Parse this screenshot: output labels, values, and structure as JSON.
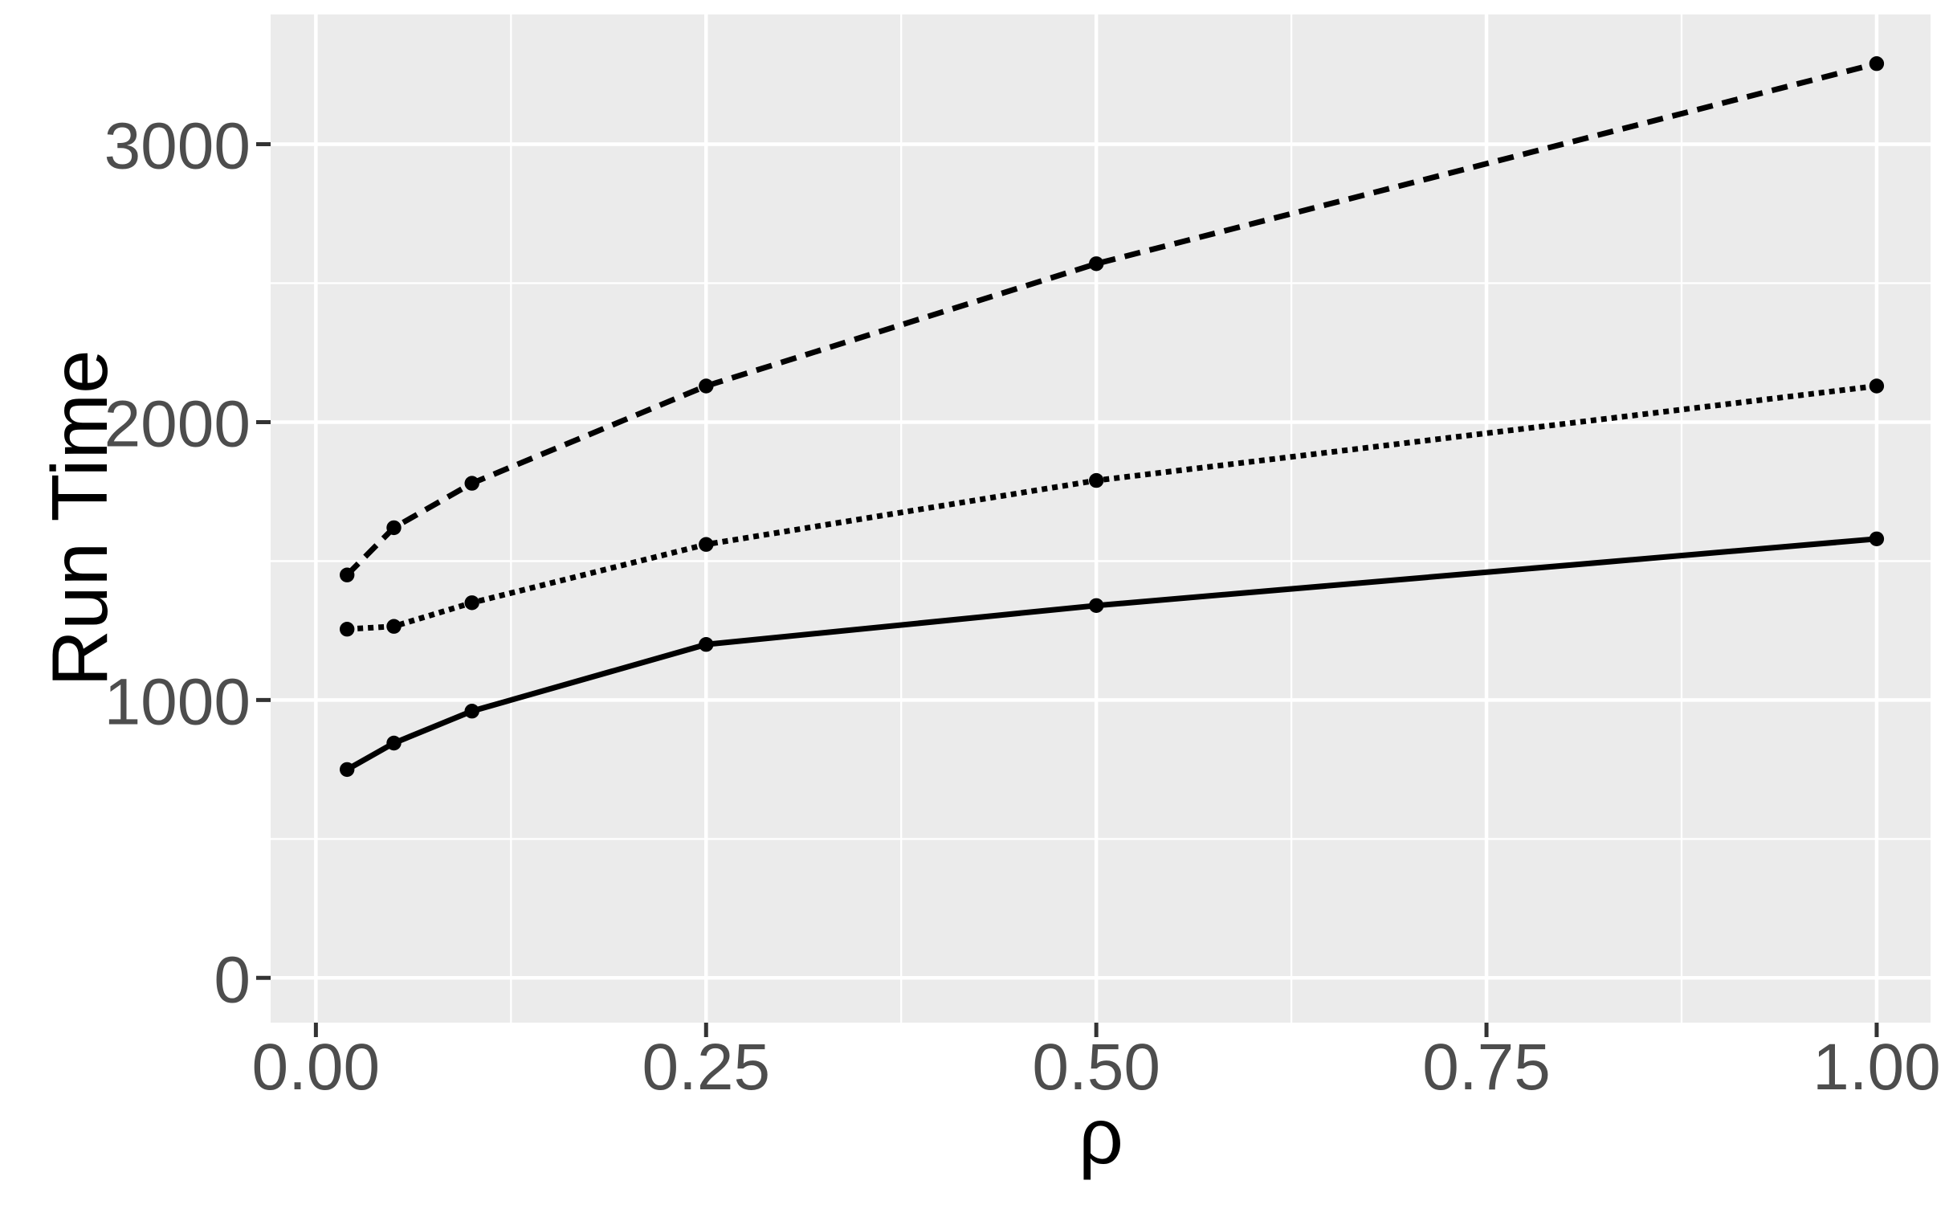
{
  "figure": {
    "kind": "ggplot-style statistical graphic",
    "background_color": "#FFFFFF"
  },
  "chart_data": {
    "type": "line",
    "title": "",
    "xlabel": "ρ",
    "ylabel": "Run Time",
    "x": [
      0.02,
      0.05,
      0.1,
      0.25,
      0.5,
      1.0
    ],
    "series": [
      {
        "name": "solid-line-series",
        "linetype": "solid",
        "values": [
          750,
          845,
          960,
          1200,
          1340,
          1580
        ]
      },
      {
        "name": "dotted-line-series",
        "linetype": "dotted",
        "values": [
          1255,
          1265,
          1350,
          1560,
          1790,
          2130
        ]
      },
      {
        "name": "dashed-line-series",
        "linetype": "dashed",
        "values": [
          1450,
          1620,
          1780,
          2130,
          2570,
          3290
        ]
      }
    ],
    "marker": "filled-circle",
    "legend": "none",
    "grid": "major-and-minor",
    "xlim": [
      -0.029,
      1.0345
    ],
    "ylim": [
      -161,
      3467
    ],
    "x_ticks": {
      "values": [
        0,
        0.25,
        0.5,
        0.75,
        1
      ],
      "labels": [
        "0.00",
        "0.25",
        "0.50",
        "0.75",
        "1.00"
      ]
    },
    "y_ticks": {
      "values": [
        0,
        1000,
        2000,
        3000
      ],
      "labels": [
        "0",
        "1000",
        "2000",
        "3000"
      ]
    },
    "x_minor_breaks": [
      0.125,
      0.375,
      0.625,
      0.875
    ],
    "y_minor_breaks": [
      500,
      1500,
      2500
    ],
    "colors": {
      "panel_background": "#EBEBEB",
      "gridline": "#FFFFFF",
      "tick_mark": "#333333",
      "tick_label": "#4D4D4D",
      "axis_title": "#000000",
      "series_stroke": "#000000"
    }
  }
}
